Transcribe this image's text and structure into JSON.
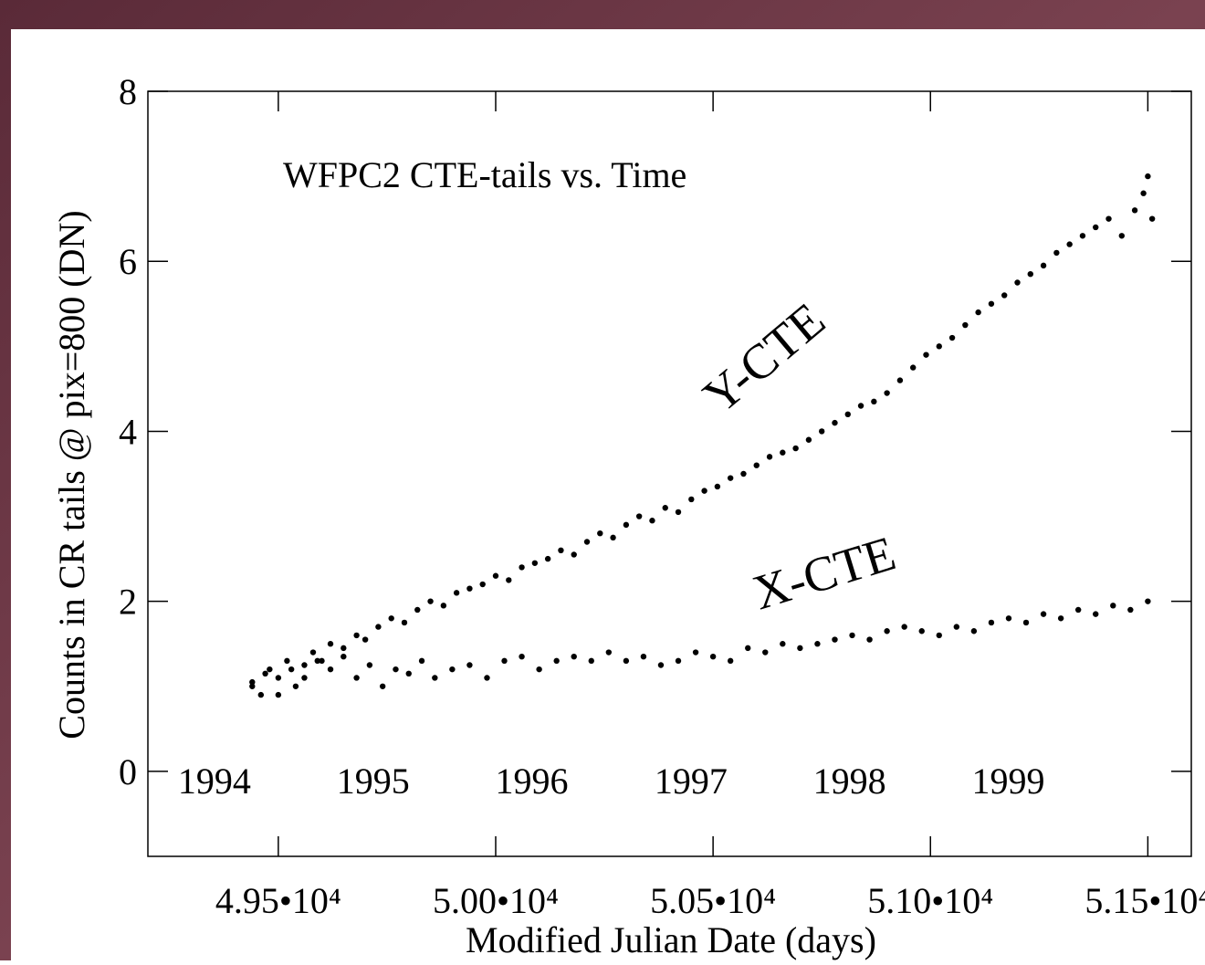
{
  "chart_data": {
    "type": "scatter",
    "title": "WFPC2 CTE-tails vs. Time",
    "x_label": "Modified Julian Date (days)",
    "y_label": "Counts in CR tails @ pix=800 (DN)",
    "xlim": [
      49200,
      51600
    ],
    "ylim": [
      -1,
      8
    ],
    "xticks": [
      {
        "value": 49500,
        "label": "4.95•10⁴"
      },
      {
        "value": 50000,
        "label": "5.00•10⁴"
      },
      {
        "value": 50500,
        "label": "5.05•10⁴"
      },
      {
        "value": 51000,
        "label": "5.10•10⁴"
      },
      {
        "value": 51500,
        "label": "5.15•10⁴"
      }
    ],
    "yticks": [
      0,
      2,
      4,
      6,
      8
    ],
    "x2ticks": [
      {
        "value": 49353,
        "label": "1994"
      },
      {
        "value": 49718,
        "label": "1995"
      },
      {
        "value": 50083,
        "label": "1996"
      },
      {
        "value": 50449,
        "label": "1997"
      },
      {
        "value": 50814,
        "label": "1998"
      },
      {
        "value": 51179,
        "label": "1999"
      }
    ],
    "series": [
      {
        "name": "Y-CTE",
        "color": "#000000",
        "x": [
          49440,
          49460,
          49480,
          49500,
          49520,
          49540,
          49560,
          49580,
          49600,
          49620,
          49650,
          49680,
          49700,
          49730,
          49760,
          49790,
          49820,
          49850,
          49880,
          49910,
          49940,
          49970,
          50000,
          50030,
          50060,
          50090,
          50120,
          50150,
          50180,
          50210,
          50240,
          50270,
          50300,
          50330,
          50360,
          50390,
          50420,
          50450,
          50480,
          50510,
          50540,
          50570,
          50600,
          50630,
          50660,
          50690,
          50720,
          50750,
          50780,
          50810,
          50840,
          50870,
          50900,
          50930,
          50960,
          50990,
          51020,
          51050,
          51080,
          51110,
          51140,
          51170,
          51200,
          51230,
          51260,
          51290,
          51320,
          51350,
          51380,
          51410,
          51440,
          51470,
          51490,
          51500,
          51510
        ],
        "values": [
          1.05,
          0.9,
          1.2,
          1.1,
          1.3,
          1.0,
          1.25,
          1.4,
          1.3,
          1.5,
          1.45,
          1.6,
          1.55,
          1.7,
          1.8,
          1.75,
          1.9,
          2.0,
          1.95,
          2.1,
          2.15,
          2.2,
          2.3,
          2.25,
          2.4,
          2.45,
          2.5,
          2.6,
          2.55,
          2.7,
          2.8,
          2.75,
          2.9,
          3.0,
          2.95,
          3.1,
          3.05,
          3.2,
          3.3,
          3.35,
          3.45,
          3.5,
          3.6,
          3.7,
          3.75,
          3.8,
          3.9,
          4.0,
          4.1,
          4.2,
          4.3,
          4.35,
          4.45,
          4.6,
          4.75,
          4.9,
          5.0,
          5.1,
          5.25,
          5.4,
          5.5,
          5.6,
          5.75,
          5.85,
          5.95,
          6.1,
          6.2,
          6.3,
          6.4,
          6.5,
          6.3,
          6.6,
          6.8,
          7.0,
          6.5
        ]
      },
      {
        "name": "X-CTE",
        "color": "#000000",
        "x": [
          49440,
          49470,
          49500,
          49530,
          49560,
          49590,
          49620,
          49650,
          49680,
          49710,
          49740,
          49770,
          49800,
          49830,
          49860,
          49900,
          49940,
          49980,
          50020,
          50060,
          50100,
          50140,
          50180,
          50220,
          50260,
          50300,
          50340,
          50380,
          50420,
          50460,
          50500,
          50540,
          50580,
          50620,
          50660,
          50700,
          50740,
          50780,
          50820,
          50860,
          50900,
          50940,
          50980,
          51020,
          51060,
          51100,
          51140,
          51180,
          51220,
          51260,
          51300,
          51340,
          51380,
          51420,
          51460,
          51500
        ],
        "values": [
          1.0,
          1.15,
          0.9,
          1.2,
          1.1,
          1.3,
          1.2,
          1.35,
          1.1,
          1.25,
          1.0,
          1.2,
          1.15,
          1.3,
          1.1,
          1.2,
          1.25,
          1.1,
          1.3,
          1.35,
          1.2,
          1.3,
          1.35,
          1.3,
          1.4,
          1.3,
          1.35,
          1.25,
          1.3,
          1.4,
          1.35,
          1.3,
          1.45,
          1.4,
          1.5,
          1.45,
          1.5,
          1.55,
          1.6,
          1.55,
          1.65,
          1.7,
          1.65,
          1.6,
          1.7,
          1.65,
          1.75,
          1.8,
          1.75,
          1.85,
          1.8,
          1.9,
          1.85,
          1.95,
          1.9,
          2.0
        ]
      }
    ]
  }
}
